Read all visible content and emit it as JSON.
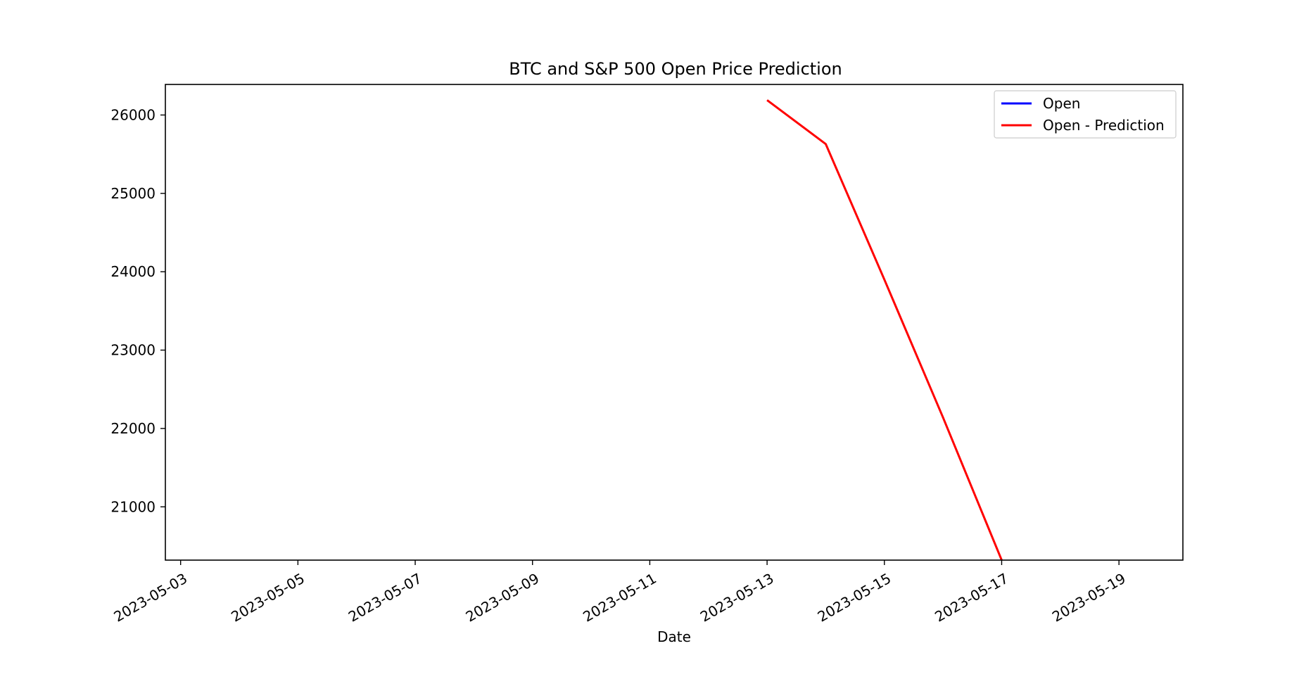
{
  "chart_data": {
    "type": "line",
    "title": "BTC and S&P 500 Open Price Prediction",
    "xlabel": "Date",
    "ylabel": "",
    "x_ticks": [
      "2023-05-03",
      "2023-05-05",
      "2023-05-07",
      "2023-05-09",
      "2023-05-11",
      "2023-05-13",
      "2023-05-15",
      "2023-05-17",
      "2023-05-19"
    ],
    "y_ticks": [
      21000,
      22000,
      23000,
      24000,
      25000,
      26000
    ],
    "xlim": [
      "2023-05-02.74",
      "2023-05-20.09"
    ],
    "ylim": [
      20320,
      26390
    ],
    "grid": false,
    "legend_position": "top-right",
    "series": [
      {
        "name": "Open",
        "color": "#0000ff",
        "x": [],
        "values": []
      },
      {
        "name": "Open - Prediction",
        "color": "#ff0000",
        "x": [
          "2023-05-13",
          "2023-05-14",
          "2023-05-15",
          "2023-05-16",
          "2023-05-17"
        ],
        "values": [
          26190,
          25630,
          23900,
          22140,
          20320
        ]
      }
    ]
  }
}
